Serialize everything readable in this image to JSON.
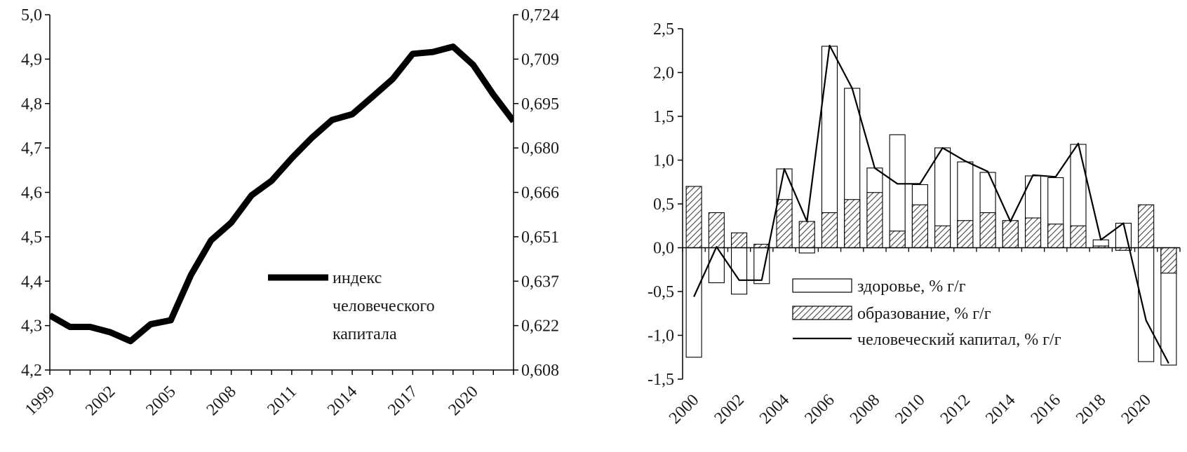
{
  "chart_data": [
    {
      "type": "line",
      "title": "",
      "x": [
        1999,
        2000,
        2001,
        2002,
        2003,
        2004,
        2005,
        2006,
        2007,
        2008,
        2009,
        2010,
        2011,
        2012,
        2013,
        2014,
        2015,
        2016,
        2017,
        2018,
        2019,
        2020,
        2021,
        2022
      ],
      "x_tick_labels": [
        "1999",
        "2002",
        "2005",
        "2008",
        "2011",
        "2014",
        "2017",
        "2020"
      ],
      "x_tick_years": [
        1999,
        2002,
        2005,
        2008,
        2011,
        2014,
        2017,
        2020
      ],
      "y_left_ticks": [
        "5,0",
        "4,9",
        "4,8",
        "4,7",
        "4,6",
        "4,5",
        "4,4",
        "4,3",
        "4,2"
      ],
      "y_right_ticks": [
        "0,724",
        "0,709",
        "0,695",
        "0,680",
        "0,666",
        "0,651",
        "0,637",
        "0,622",
        "0,608"
      ],
      "ylim_left": [
        4.2,
        5.0
      ],
      "ylim_right": [
        0.608,
        0.724
      ],
      "series": [
        {
          "name": "индекс человеческого капитала",
          "legend_lines": [
            "индекс",
            "человеческого",
            "капитала"
          ],
          "values": [
            4.323,
            4.297,
            4.297,
            4.285,
            4.265,
            4.303,
            4.312,
            4.414,
            4.492,
            4.532,
            4.593,
            4.626,
            4.677,
            4.723,
            4.763,
            4.776,
            4.815,
            4.855,
            4.912,
            4.916,
            4.928,
            4.887,
            4.82,
            4.76
          ],
          "color": "#000000"
        }
      ]
    },
    {
      "type": "bar",
      "title": "",
      "categories": [
        "2000",
        "2001",
        "2002",
        "2003",
        "2004",
        "2005",
        "2006",
        "2007",
        "2008",
        "2009",
        "2010",
        "2011",
        "2012",
        "2013",
        "2014",
        "2015",
        "2016",
        "2017",
        "2018",
        "2019",
        "2020",
        "2021"
      ],
      "x_tick_labels": [
        "2000",
        "2002",
        "2004",
        "2006",
        "2008",
        "2010",
        "2012",
        "2014",
        "2016",
        "2018",
        "2020"
      ],
      "y_ticks": [
        "2,5",
        "2,0",
        "1,5",
        "1,0",
        "0,5",
        "0,0",
        "-0,5",
        "-1,0",
        "-1,5"
      ],
      "ylim": [
        -1.5,
        2.5
      ],
      "series": [
        {
          "name": "здоровье, % г/г",
          "style": "bar-hollow",
          "values": [
            -1.25,
            -0.4,
            -0.53,
            -0.41,
            0.9,
            -0.06,
            2.3,
            1.82,
            0.91,
            1.29,
            0.72,
            1.14,
            0.98,
            0.86,
            0.29,
            0.82,
            0.8,
            1.18,
            0.09,
            0.28,
            -1.3,
            -1.34
          ]
        },
        {
          "name": "образование, % г/г",
          "style": "bar-hatched",
          "values": [
            0.7,
            0.4,
            0.17,
            0.04,
            0.55,
            0.3,
            0.4,
            0.55,
            0.63,
            0.19,
            0.49,
            0.25,
            0.31,
            0.4,
            0.31,
            0.34,
            0.27,
            0.25,
            0.02,
            -0.03,
            0.49,
            -0.29
          ]
        },
        {
          "name": "человеческий капитал, % г/г",
          "style": "line",
          "values": [
            -0.56,
            0.01,
            -0.37,
            -0.37,
            0.9,
            0.3,
            2.31,
            1.82,
            0.91,
            0.73,
            0.73,
            1.14,
            0.99,
            0.87,
            0.3,
            0.83,
            0.81,
            1.19,
            0.09,
            0.28,
            -0.83,
            -1.32
          ]
        }
      ]
    }
  ]
}
